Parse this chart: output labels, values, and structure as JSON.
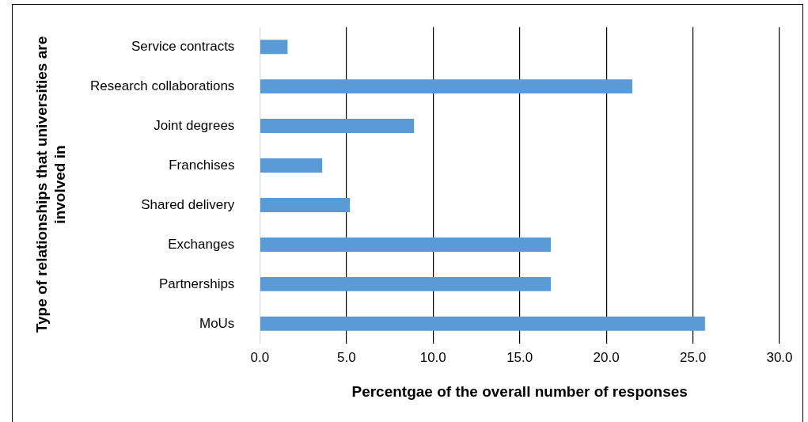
{
  "chart_data": {
    "type": "bar",
    "orientation": "horizontal",
    "xlabel": "Percentgae of the overall number of responses",
    "ylabel": "Type of relationships that universities are involved in",
    "categories": [
      "Service contracts",
      "Research collaborations",
      "Joint degrees",
      "Franchises",
      "Shared delivery",
      "Exchanges",
      "Partnerships",
      "MoUs"
    ],
    "values": [
      1.6,
      21.5,
      8.9,
      3.6,
      5.2,
      16.8,
      16.8,
      25.7
    ],
    "color": "#5b9bd5",
    "xlim": [
      0,
      30
    ],
    "xticks": [
      {
        "value": 0,
        "label": "0.0"
      },
      {
        "value": 5,
        "label": "5.0"
      },
      {
        "value": 10,
        "label": "10.0"
      },
      {
        "value": 15,
        "label": "15.0"
      },
      {
        "value": 20,
        "label": "20.0"
      },
      {
        "value": 25,
        "label": "25.0"
      },
      {
        "value": 30,
        "label": "30.0"
      }
    ],
    "grid": "x",
    "legend": false
  }
}
